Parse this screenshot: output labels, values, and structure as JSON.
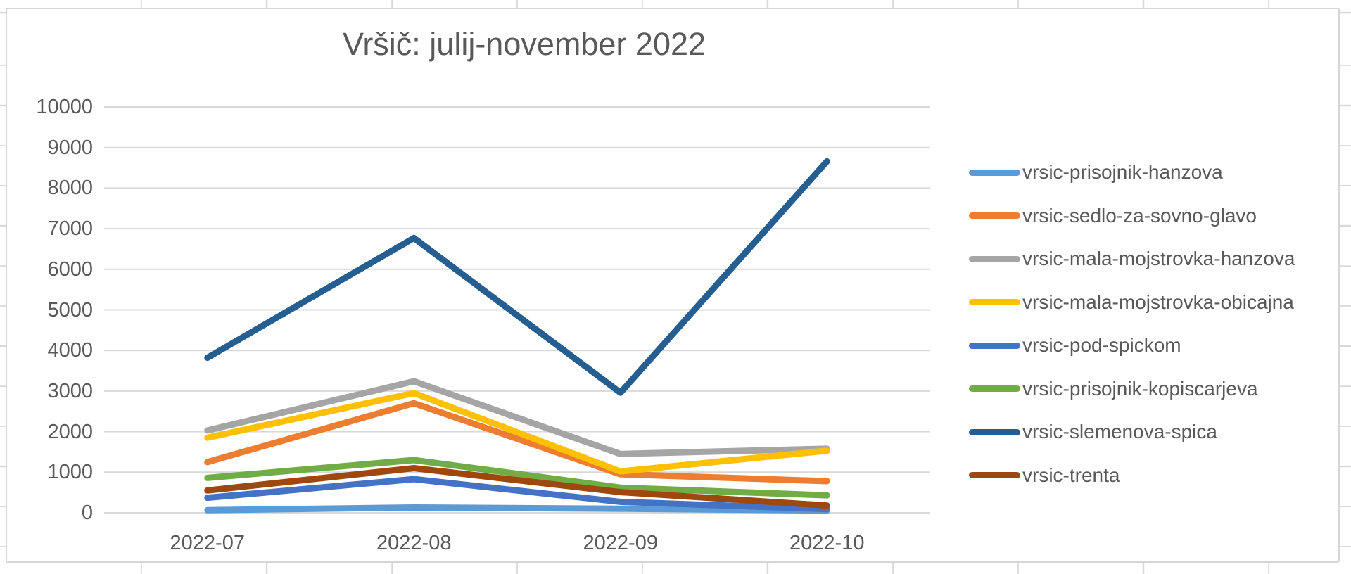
{
  "chart_data": {
    "type": "line",
    "title": "Vršič: julij-november 2022",
    "categories": [
      "2022-07",
      "2022-08",
      "2022-09",
      "2022-10"
    ],
    "series": [
      {
        "name": "vrsic-prisojnik-hanzova",
        "color": "#5B9BD5",
        "values": [
          65,
          130,
          100,
          55
        ]
      },
      {
        "name": "vrsic-sedlo-za-sovno-glavo",
        "color": "#ED7D31",
        "values": [
          1250,
          2700,
          950,
          780
        ]
      },
      {
        "name": "vrsic-mala-mojstrovka-hanzova",
        "color": "#A5A5A5",
        "values": [
          2030,
          3240,
          1450,
          1580
        ]
      },
      {
        "name": "vrsic-mala-mojstrovka-obicajna",
        "color": "#FFC000",
        "values": [
          1850,
          2950,
          1020,
          1530
        ]
      },
      {
        "name": "vrsic-pod-spickom",
        "color": "#4472C4",
        "values": [
          370,
          830,
          270,
          90
        ]
      },
      {
        "name": "vrsic-prisojnik-kopiscarjeva",
        "color": "#70AD47",
        "values": [
          860,
          1300,
          620,
          430
        ]
      },
      {
        "name": "vrsic-slemenova-spica",
        "color": "#255E91",
        "values": [
          3820,
          6770,
          2960,
          8660
        ]
      },
      {
        "name": "vrsic-trenta",
        "color": "#9E480E",
        "values": [
          550,
          1100,
          510,
          180
        ]
      }
    ],
    "ylim": [
      0,
      10000
    ],
    "ytick_step": 1000,
    "ytick_labels": [
      "0",
      "1000",
      "2000",
      "3000",
      "4000",
      "5000",
      "6000",
      "7000",
      "8000",
      "9000",
      "10000"
    ],
    "grid": true,
    "legend_position": "right"
  },
  "colors": {
    "text": "#595959",
    "gridline": "#D9D9D9",
    "chart_border": "#D6D6D6",
    "chart_background": "#FFFFFF"
  }
}
